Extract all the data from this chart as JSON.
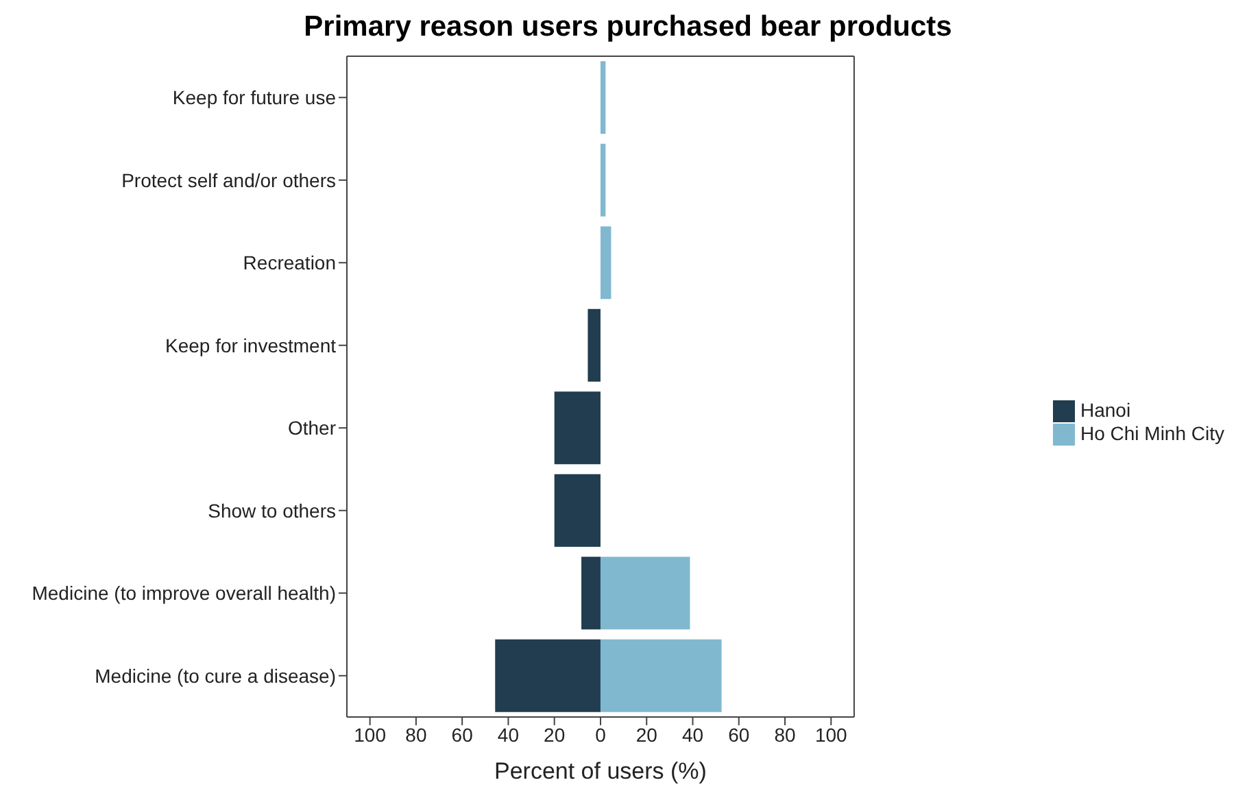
{
  "chart_data": {
    "type": "bar",
    "title": "Primary reason users purchased bear products",
    "xlabel": "Percent of users (%)",
    "orientation": "horizontal",
    "stacked": true,
    "categories": [
      "Keep for future use",
      "Protect self and/or others",
      "Recreation",
      "Keep for investment",
      "Other",
      "Show to others",
      "Medicine (to improve overall health)",
      "Medicine (to cure a disease)"
    ],
    "series": [
      {
        "name": "Hanoi",
        "color": "#213d4f",
        "values": [
          null,
          null,
          null,
          -5.5,
          -20,
          -20,
          -8.3,
          -45.7
        ]
      },
      {
        "name": "Ho Chi Minh City",
        "color": "#80b8d0",
        "values": [
          2.2,
          2.2,
          4.6,
          null,
          null,
          null,
          38.8,
          52.5
        ]
      }
    ],
    "xlim": [
      -110,
      110
    ],
    "xticks": [
      {
        "value": -100,
        "label": "100"
      },
      {
        "value": -80,
        "label": "80"
      },
      {
        "value": -60,
        "label": "60"
      },
      {
        "value": -40,
        "label": "40"
      },
      {
        "value": -20,
        "label": "20"
      },
      0,
      20,
      40,
      60,
      80,
      100
    ],
    "grid": false,
    "legend": "right"
  }
}
